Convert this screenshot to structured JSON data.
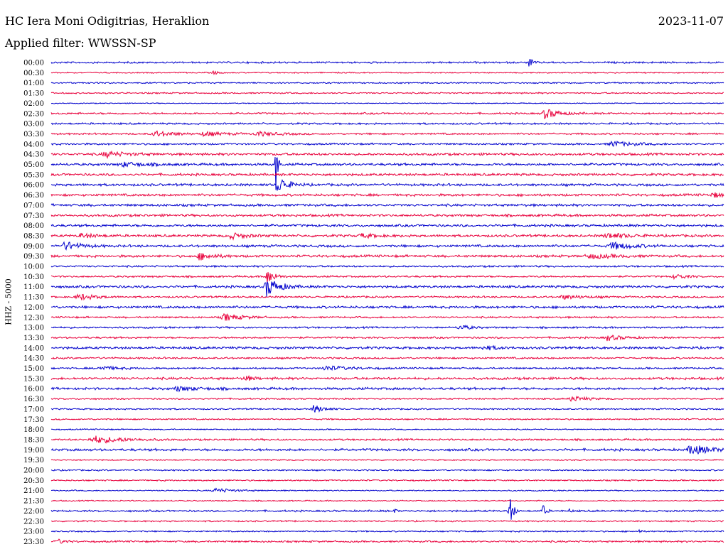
{
  "header": {
    "station": "HC Iera Moni Odigitrias, Heraklion",
    "date": "2023-11-07",
    "filter": "Applied filter: WWSSN-SP"
  },
  "chart_data": {
    "type": "line",
    "title": "HC Iera Moni Odigitrias, Heraklion",
    "ylabel": "HHZ - 5000",
    "colors": {
      "even_row": "#0000cc",
      "odd_row": "#e8003c"
    },
    "rows": [
      "00:00",
      "00:30",
      "01:00",
      "01:30",
      "02:00",
      "02:30",
      "03:00",
      "03:30",
      "04:00",
      "04:30",
      "05:00",
      "05:30",
      "06:00",
      "06:30",
      "07:00",
      "07:30",
      "08:00",
      "08:30",
      "09:00",
      "09:30",
      "10:00",
      "10:30",
      "11:00",
      "11:30",
      "12:00",
      "12:30",
      "13:00",
      "13:30",
      "14:00",
      "14:30",
      "15:00",
      "15:30",
      "16:00",
      "16:30",
      "17:00",
      "17:30",
      "18:00",
      "18:30",
      "19:00",
      "19:30",
      "20:00",
      "20:30",
      "21:00",
      "21:30",
      "22:00",
      "22:30",
      "23:00",
      "23:30"
    ],
    "noise": [
      1.5,
      1,
      1.2,
      1.2,
      0.8,
      1.5,
      1.5,
      1.5,
      1.5,
      2,
      2,
      2,
      2,
      2,
      2,
      2,
      2,
      2,
      2,
      2,
      1.5,
      1.5,
      2,
      1.5,
      2,
      1.5,
      1.5,
      1.5,
      2,
      1.5,
      1.5,
      2,
      2,
      1.2,
      1.2,
      1.2,
      1,
      1.5,
      2,
      1,
      1.2,
      1.2,
      1,
      1,
      1.5,
      1.2,
      1.2,
      1.5
    ],
    "events": [
      {
        "row": 0,
        "t": 21.3,
        "amp": 8,
        "w": 0.15
      },
      {
        "row": 1,
        "t": 7.2,
        "amp": 3,
        "w": 0.2
      },
      {
        "row": 5,
        "t": 22.0,
        "amp": 7,
        "w": 0.6
      },
      {
        "row": 5,
        "t": 30.7,
        "amp": 7,
        "w": 0.6
      },
      {
        "row": 7,
        "t": 4.6,
        "amp": 4,
        "w": 0.8
      },
      {
        "row": 7,
        "t": 6.8,
        "amp": 3,
        "w": 0.8
      },
      {
        "row": 7,
        "t": 9.2,
        "amp": 3,
        "w": 0.8
      },
      {
        "row": 8,
        "t": 25.0,
        "amp": 4,
        "w": 0.8
      },
      {
        "row": 9,
        "t": 2.4,
        "amp": 4,
        "w": 0.8
      },
      {
        "row": 10,
        "t": 3.2,
        "amp": 3,
        "w": 0.9
      },
      {
        "row": 10,
        "t": 10.0,
        "amp": 60,
        "w": 0.08
      },
      {
        "row": 12,
        "t": 10.1,
        "amp": 12,
        "w": 0.4
      },
      {
        "row": 13,
        "t": 29.5,
        "amp": 3,
        "w": 0.6
      },
      {
        "row": 17,
        "t": 1.3,
        "amp": 3,
        "w": 0.6
      },
      {
        "row": 17,
        "t": 8.0,
        "amp": 4,
        "w": 0.6
      },
      {
        "row": 17,
        "t": 13.8,
        "amp": 3,
        "w": 0.6
      },
      {
        "row": 17,
        "t": 24.8,
        "amp": 4,
        "w": 0.8
      },
      {
        "row": 18,
        "t": 0.6,
        "amp": 6,
        "w": 0.6
      },
      {
        "row": 18,
        "t": 25.0,
        "amp": 5,
        "w": 0.8
      },
      {
        "row": 19,
        "t": 6.6,
        "amp": 5,
        "w": 0.6
      },
      {
        "row": 19,
        "t": 24.0,
        "amp": 3,
        "w": 1.0
      },
      {
        "row": 21,
        "t": 9.6,
        "amp": 12,
        "w": 0.3
      },
      {
        "row": 21,
        "t": 27.8,
        "amp": 4,
        "w": 0.4
      },
      {
        "row": 22,
        "t": 9.6,
        "amp": 14,
        "w": 0.5
      },
      {
        "row": 23,
        "t": 1.2,
        "amp": 5,
        "w": 0.6
      },
      {
        "row": 23,
        "t": 22.8,
        "amp": 3,
        "w": 0.8
      },
      {
        "row": 25,
        "t": 7.7,
        "amp": 5,
        "w": 0.7
      },
      {
        "row": 26,
        "t": 18.2,
        "amp": 4,
        "w": 0.4
      },
      {
        "row": 26,
        "t": 30.2,
        "amp": 3,
        "w": 0.6
      },
      {
        "row": 27,
        "t": 24.8,
        "amp": 4,
        "w": 0.6
      },
      {
        "row": 28,
        "t": 19.3,
        "amp": 3,
        "w": 0.5
      },
      {
        "row": 30,
        "t": 2.2,
        "amp": 3,
        "w": 0.6
      },
      {
        "row": 30,
        "t": 12.2,
        "amp": 3,
        "w": 1.0
      },
      {
        "row": 31,
        "t": 8.6,
        "amp": 4,
        "w": 0.3
      },
      {
        "row": 32,
        "t": 5.6,
        "amp": 3,
        "w": 0.8
      },
      {
        "row": 33,
        "t": 23.2,
        "amp": 4,
        "w": 0.6
      },
      {
        "row": 34,
        "t": 11.7,
        "amp": 6,
        "w": 0.4
      },
      {
        "row": 37,
        "t": 1.9,
        "amp": 5,
        "w": 1.2
      },
      {
        "row": 38,
        "t": 28.5,
        "amp": 7,
        "w": 0.8
      },
      {
        "row": 42,
        "t": 7.3,
        "amp": 3,
        "w": 0.8
      },
      {
        "row": 44,
        "t": 20.4,
        "amp": 28,
        "w": 0.15
      },
      {
        "row": 44,
        "t": 21.9,
        "amp": 12,
        "w": 0.12
      },
      {
        "row": 44,
        "t": 15.3,
        "amp": 3,
        "w": 0.1
      },
      {
        "row": 44,
        "t": 23.1,
        "amp": 3,
        "w": 0.1
      },
      {
        "row": 46,
        "t": 26.2,
        "amp": 3,
        "w": 0.1
      },
      {
        "row": 47,
        "t": 0.3,
        "amp": 3,
        "w": 0.3
      }
    ]
  }
}
